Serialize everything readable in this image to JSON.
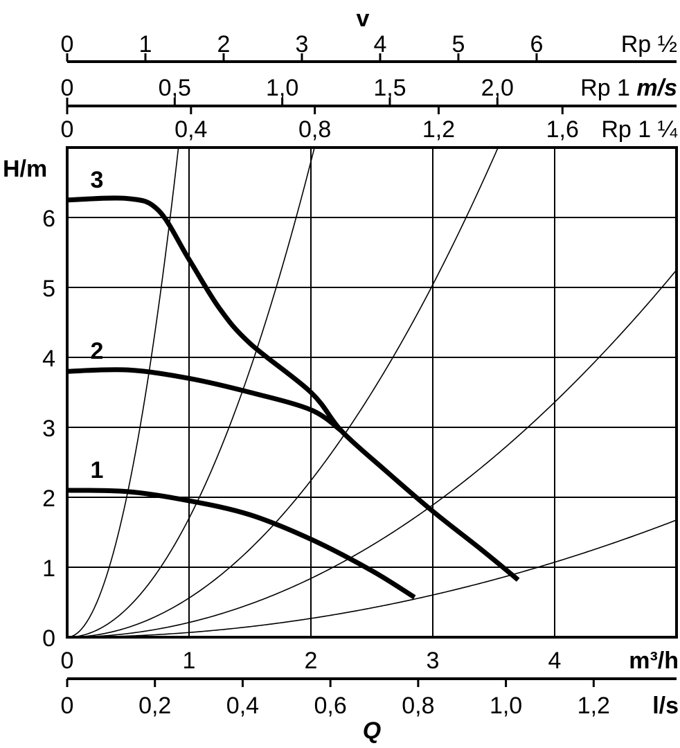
{
  "chart_data": {
    "type": "line",
    "title": "",
    "xlabel": "Q",
    "x_unit": "m³/h",
    "ylabel": "H/m",
    "xlim": [
      0,
      5
    ],
    "ylim": [
      0,
      7
    ],
    "grid": true,
    "x_ticks": [
      "0",
      "1",
      "2",
      "3",
      "4"
    ],
    "x_tick_values": [
      0,
      1,
      2,
      3,
      4
    ],
    "y_ticks": [
      "0",
      "1",
      "2",
      "3",
      "4",
      "5",
      "6"
    ],
    "y_tick_values": [
      0,
      1,
      2,
      3,
      4,
      5,
      6
    ],
    "series": [
      {
        "name": "1",
        "x": [
          0,
          0.5,
          1,
          1.5,
          2,
          2.5,
          2.85
        ],
        "y": [
          2.1,
          2.08,
          1.95,
          1.75,
          1.4,
          0.95,
          0.57
        ]
      },
      {
        "name": "2",
        "x": [
          0,
          0.5,
          1,
          1.5,
          2,
          2.25
        ],
        "y": [
          3.8,
          3.82,
          3.7,
          3.5,
          3.25,
          2.95
        ]
      },
      {
        "name": "3",
        "x": [
          0,
          0.5,
          0.75,
          1,
          1.25,
          1.5,
          2,
          2.25,
          2.6,
          3,
          3.4,
          3.7
        ],
        "y": [
          6.25,
          6.27,
          6.1,
          5.4,
          4.7,
          4.2,
          3.5,
          2.95,
          2.4,
          1.8,
          1.25,
          0.82
        ]
      }
    ],
    "system_curves_k": [
      8.4,
      1.7,
      0.56,
      0.21,
      0.067
    ],
    "velocity_axes": {
      "title": "v",
      "unit": "m/s",
      "axes": [
        {
          "name": "Rp ½",
          "ticks": [
            "0",
            "1",
            "2",
            "3",
            "4",
            "5",
            "6"
          ],
          "values": [
            0,
            1,
            2,
            3,
            4,
            5,
            6
          ],
          "q_per_unit": 0.642
        },
        {
          "name": "Rp 1",
          "ticks": [
            "0",
            "0,5",
            "1,0",
            "1,5",
            "2,0"
          ],
          "values": [
            0,
            0.5,
            1.0,
            1.5,
            2.0
          ],
          "q_per_unit": 1.765
        },
        {
          "name": "Rp 1 ¼",
          "ticks": [
            "0",
            "0,4",
            "0,8",
            "1,2",
            "1,6"
          ],
          "values": [
            0,
            0.4,
            0.8,
            1.2,
            1.6
          ],
          "q_per_unit": 2.54
        }
      ]
    },
    "secondary_x_axis": {
      "unit": "l/s",
      "ticks": [
        "0",
        "0,2",
        "0,4",
        "0,6",
        "0,8",
        "1,0",
        "1,2"
      ],
      "values": [
        0,
        0.2,
        0.4,
        0.6,
        0.8,
        1.0,
        1.2
      ],
      "q_per_unit": 3.6
    }
  }
}
